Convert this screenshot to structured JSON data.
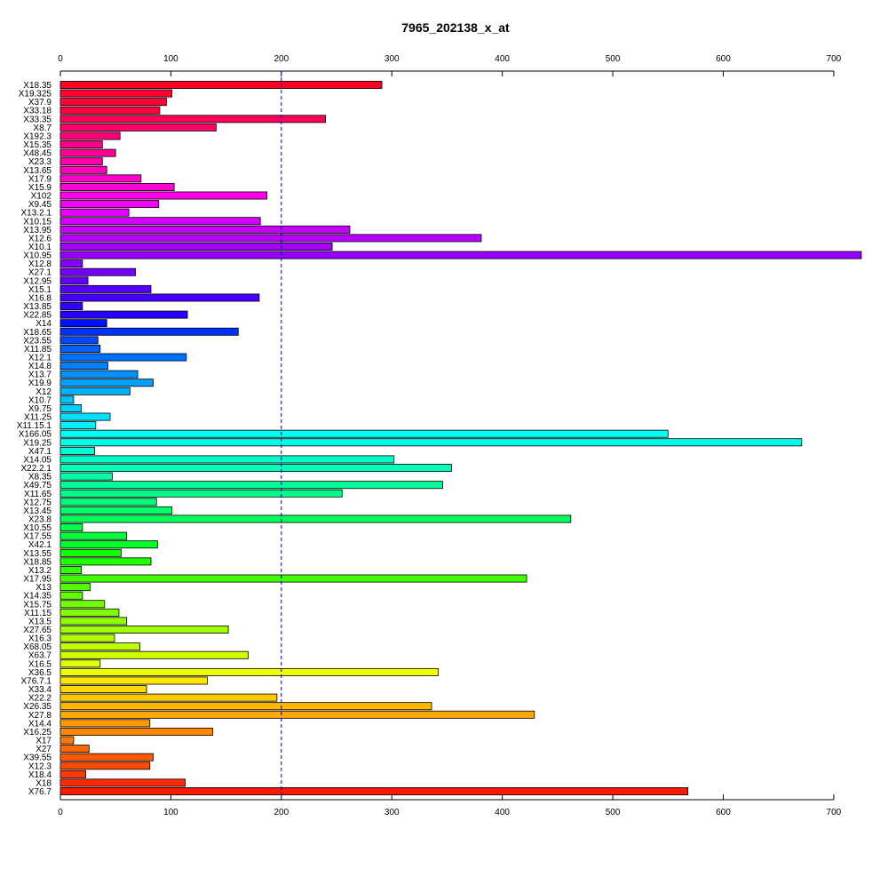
{
  "chart_data": {
    "type": "bar",
    "orientation": "horizontal",
    "title": "7965_202138_x_at",
    "xlabel": "",
    "ylabel": "",
    "xlim": [
      0,
      725
    ],
    "x_ticks": [
      "0",
      "100",
      "200",
      "300",
      "400",
      "500",
      "600",
      "700"
    ],
    "x_tick_values": [
      0,
      100,
      200,
      300,
      400,
      500,
      600,
      700
    ],
    "axes": [
      "top",
      "bottom"
    ],
    "reference_line": {
      "value": 200,
      "style": "dashed",
      "color": "#000080"
    },
    "categories": [
      "X18.35",
      "X19.325",
      "X37.9",
      "X33.18",
      "X33.35",
      "X8.7",
      "X192.3",
      "X15.35",
      "X48.45",
      "X23.3",
      "X13.65",
      "X17.9",
      "X15.9",
      "X102",
      "X9.45",
      "X13.2.1",
      "X10.15",
      "X13.95",
      "X12.6",
      "X10.1",
      "X10.95",
      "X12.8",
      "X27.1",
      "X12.95",
      "X15.1",
      "X16.8",
      "X13.85",
      "X22.85",
      "X14",
      "X18.65",
      "X23.55",
      "X11.85",
      "X12.1",
      "X14.8",
      "X13.7",
      "X19.9",
      "X12",
      "X10.7",
      "X9.75",
      "X11.25",
      "X11.15.1",
      "X166.05",
      "X19.25",
      "X47.1",
      "X14.05",
      "X22.2.1",
      "X8.35",
      "X49.75",
      "X11.65",
      "X12.75",
      "X13.45",
      "X23.8",
      "X10.55",
      "X17.55",
      "X42.1",
      "X13.55",
      "X18.85",
      "X13.2",
      "X17.95",
      "X13",
      "X14.35",
      "X15.75",
      "X11.15",
      "X13.5",
      "X27.65",
      "X16.3",
      "X68.05",
      "X63.7",
      "X16.5",
      "X36.5",
      "X76.7.1",
      "X33.4",
      "X22.2",
      "X26.35",
      "X27.8",
      "X14.4",
      "X16.25",
      "X17",
      "X27",
      "X39.55",
      "X12.3",
      "X18.4",
      "X18",
      "X76.7"
    ],
    "values": [
      291,
      101,
      96,
      90,
      240,
      141,
      54,
      38,
      50,
      38,
      42,
      73,
      103,
      187,
      89,
      62,
      181,
      262,
      381,
      246,
      725,
      20,
      68,
      25,
      82,
      180,
      20,
      115,
      42,
      161,
      34,
      36,
      114,
      43,
      70,
      84,
      63,
      12,
      19,
      45,
      32,
      550,
      671,
      31,
      302,
      354,
      47,
      346,
      255,
      87,
      101,
      462,
      20,
      60,
      88,
      55,
      82,
      19,
      422,
      27,
      20,
      40,
      53,
      60,
      152,
      49,
      72,
      170,
      36,
      342,
      133,
      78,
      196,
      336,
      429,
      81,
      138,
      12,
      26,
      84,
      81,
      23,
      113,
      568
    ],
    "colors": [
      "#FF0020",
      "#FF0030",
      "#FF0038",
      "#FF0040",
      "#FF0058",
      "#FF0068",
      "#FF0078",
      "#FF0088",
      "#FF0098",
      "#FF00A8",
      "#FF00B8",
      "#FF00C8",
      "#FF00D8",
      "#FF00E8",
      "#F500FF",
      "#E500FF",
      "#D500FF",
      "#C500FF",
      "#B500FF",
      "#A500FF",
      "#9500FF",
      "#8500FF",
      "#7500FF",
      "#6500FF",
      "#5500FF",
      "#4500FF",
      "#3500FF",
      "#2500FF",
      "#0010FF",
      "#0030FF",
      "#0048FF",
      "#0060FF",
      "#0070FF",
      "#0080FF",
      "#0090FF",
      "#00A0FF",
      "#00B0FF",
      "#00C0FF",
      "#00D0FF",
      "#00E0FF",
      "#00F0FF",
      "#00FFF5",
      "#00FFE8",
      "#00FFD8",
      "#00FFC8",
      "#00FFB8",
      "#00FFA8",
      "#00FF98",
      "#00FF88",
      "#00FF78",
      "#00FF68",
      "#00FF58",
      "#00FF48",
      "#00FF38",
      "#00FF28",
      "#10FF00",
      "#20FF00",
      "#30FF00",
      "#40FF00",
      "#50FF00",
      "#60FF00",
      "#70FF00",
      "#80FF00",
      "#90FF00",
      "#A0FF00",
      "#B0FF00",
      "#C0FF00",
      "#D0FF00",
      "#E0FF00",
      "#F0FF00",
      "#FFE800",
      "#FFD800",
      "#FFC800",
      "#FFB800",
      "#FFA800",
      "#FF9800",
      "#FF8800",
      "#FF7800",
      "#FF6800",
      "#FF5800",
      "#FF4800",
      "#FF3800",
      "#FF2800",
      "#FF1800"
    ]
  }
}
